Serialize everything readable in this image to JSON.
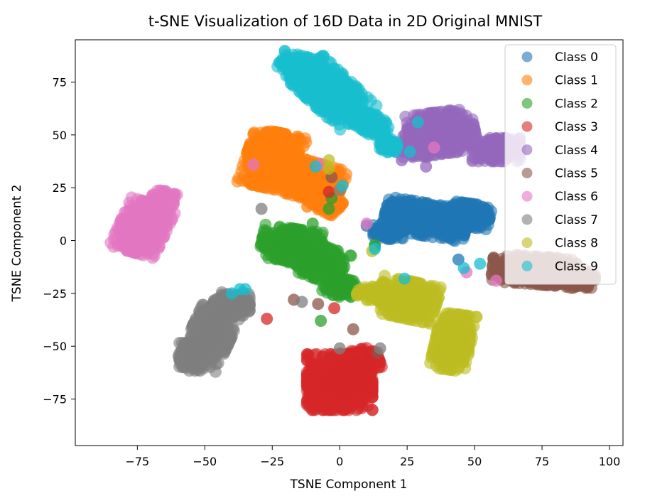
{
  "chart_data": {
    "type": "scatter",
    "title": "t-SNE Visualization of 16D Data in 2D Original MNIST",
    "xlabel": "TSNE Component 1",
    "ylabel": "TSNE Component 2",
    "xlim": [
      -98,
      105
    ],
    "ylim": [
      -97,
      95
    ],
    "xticks": [
      -75,
      -50,
      -25,
      0,
      25,
      50,
      75,
      100
    ],
    "yticks": [
      -75,
      -50,
      -25,
      0,
      25,
      50,
      75
    ],
    "xtick_labels": [
      "−75",
      "−50",
      "−25",
      "0",
      "25",
      "50",
      "75",
      "100"
    ],
    "ytick_labels": [
      "−75",
      "−50",
      "−25",
      "0",
      "25",
      "50",
      "75"
    ],
    "grid": false,
    "legend_position": "top-right",
    "series": [
      {
        "name": "Class 0",
        "color": "#1f77b4",
        "clusters": [
          [
            32,
            10,
            14,
            7,
            -12
          ],
          [
            48,
            12,
            7,
            5,
            -10
          ],
          [
            18,
            4,
            5,
            3,
            0
          ]
        ],
        "strays": [
          [
            10,
            7
          ],
          [
            13,
            -3
          ],
          [
            44,
            -9
          ]
        ]
      },
      {
        "name": "Class 1",
        "color": "#ff7f0e",
        "clusters": [
          [
            -25,
            38,
            9,
            12,
            -15
          ],
          [
            -10,
            28,
            10,
            8,
            -20
          ],
          [
            -5,
            18,
            5,
            4,
            -30
          ]
        ],
        "strays": [
          [
            -3,
            12
          ],
          [
            -12,
            16
          ]
        ]
      },
      {
        "name": "Class 2",
        "color": "#2ca02c",
        "clusters": [
          [
            -18,
            -2,
            10,
            7,
            -10
          ],
          [
            -8,
            -10,
            9,
            7,
            -25
          ],
          [
            0,
            -22,
            5,
            4,
            -20
          ]
        ],
        "strays": [
          [
            -10,
            8
          ],
          [
            -4,
            15
          ],
          [
            -3,
            20
          ],
          [
            -7,
            -38
          ],
          [
            13,
            -2
          ],
          [
            21,
            -25
          ]
        ]
      },
      {
        "name": "Class 3",
        "color": "#d62728",
        "clusters": [
          [
            0,
            -67,
            11,
            12,
            0
          ],
          [
            8,
            -57,
            6,
            5,
            15
          ]
        ],
        "strays": [
          [
            -2,
            -32
          ],
          [
            -27,
            -37
          ],
          [
            -4,
            23
          ],
          [
            7,
            -53
          ]
        ]
      },
      {
        "name": "Class 4",
        "color": "#9467bd",
        "clusters": [
          [
            38,
            51,
            11,
            9,
            10
          ],
          [
            58,
            43,
            8,
            5,
            0
          ],
          [
            28,
            45,
            4,
            5,
            0
          ]
        ],
        "strays": [
          [
            25,
            53
          ],
          [
            21,
            42
          ],
          [
            23,
            38
          ],
          [
            32,
            35
          ]
        ]
      },
      {
        "name": "Class 5",
        "color": "#8c564b",
        "clusters": [
          [
            72,
            -14,
            14,
            6,
            -5
          ],
          [
            88,
            -18,
            6,
            4,
            0
          ]
        ],
        "strays": [
          [
            14,
            -53
          ],
          [
            5,
            -42
          ],
          [
            -8,
            -30
          ],
          [
            -17,
            -28
          ],
          [
            -3,
            30
          ]
        ]
      },
      {
        "name": "Class 6",
        "color": "#e377c2",
        "clusters": [
          [
            -73,
            6,
            8,
            11,
            -20
          ],
          [
            -66,
            18,
            4,
            5,
            -20
          ]
        ],
        "strays": [
          [
            10,
            8
          ],
          [
            35,
            44
          ],
          [
            58,
            -19
          ],
          [
            -7,
            36
          ],
          [
            -32,
            36
          ],
          [
            47,
            -15
          ]
        ]
      },
      {
        "name": "Class 7",
        "color": "#7f7f7f",
        "clusters": [
          [
            -48,
            -45,
            7,
            14,
            -20
          ],
          [
            -40,
            -30,
            6,
            5,
            0
          ],
          [
            -55,
            -55,
            4,
            6,
            0
          ]
        ],
        "strays": [
          [
            -14,
            -29
          ],
          [
            -29,
            15
          ],
          [
            0,
            -51
          ],
          [
            0,
            24
          ],
          [
            15,
            -51
          ]
        ]
      },
      {
        "name": "Class 8",
        "color": "#bcbd22",
        "clusters": [
          [
            25,
            -28,
            10,
            8,
            -15
          ],
          [
            42,
            -48,
            6,
            12,
            -10
          ],
          [
            13,
            -25,
            6,
            3,
            0
          ]
        ],
        "strays": [
          [
            -4,
            38
          ],
          [
            -4,
            34
          ],
          [
            12,
            -5
          ]
        ]
      },
      {
        "name": "Class 9",
        "color": "#17becf",
        "clusters": [
          [
            -3,
            70,
            14,
            8,
            -50
          ],
          [
            -15,
            82,
            7,
            5,
            -20
          ],
          [
            12,
            55,
            6,
            4,
            -40
          ],
          [
            18,
            45,
            3,
            3,
            0
          ]
        ],
        "strays": [
          [
            -9,
            35
          ],
          [
            1,
            26
          ],
          [
            -37,
            -23
          ],
          [
            -40,
            -25
          ],
          [
            29,
            56
          ],
          [
            26,
            42
          ],
          [
            24,
            -18
          ],
          [
            46,
            -13
          ],
          [
            52,
            -11
          ],
          [
            13,
            -4
          ],
          [
            -35,
            -23
          ]
        ]
      }
    ]
  }
}
